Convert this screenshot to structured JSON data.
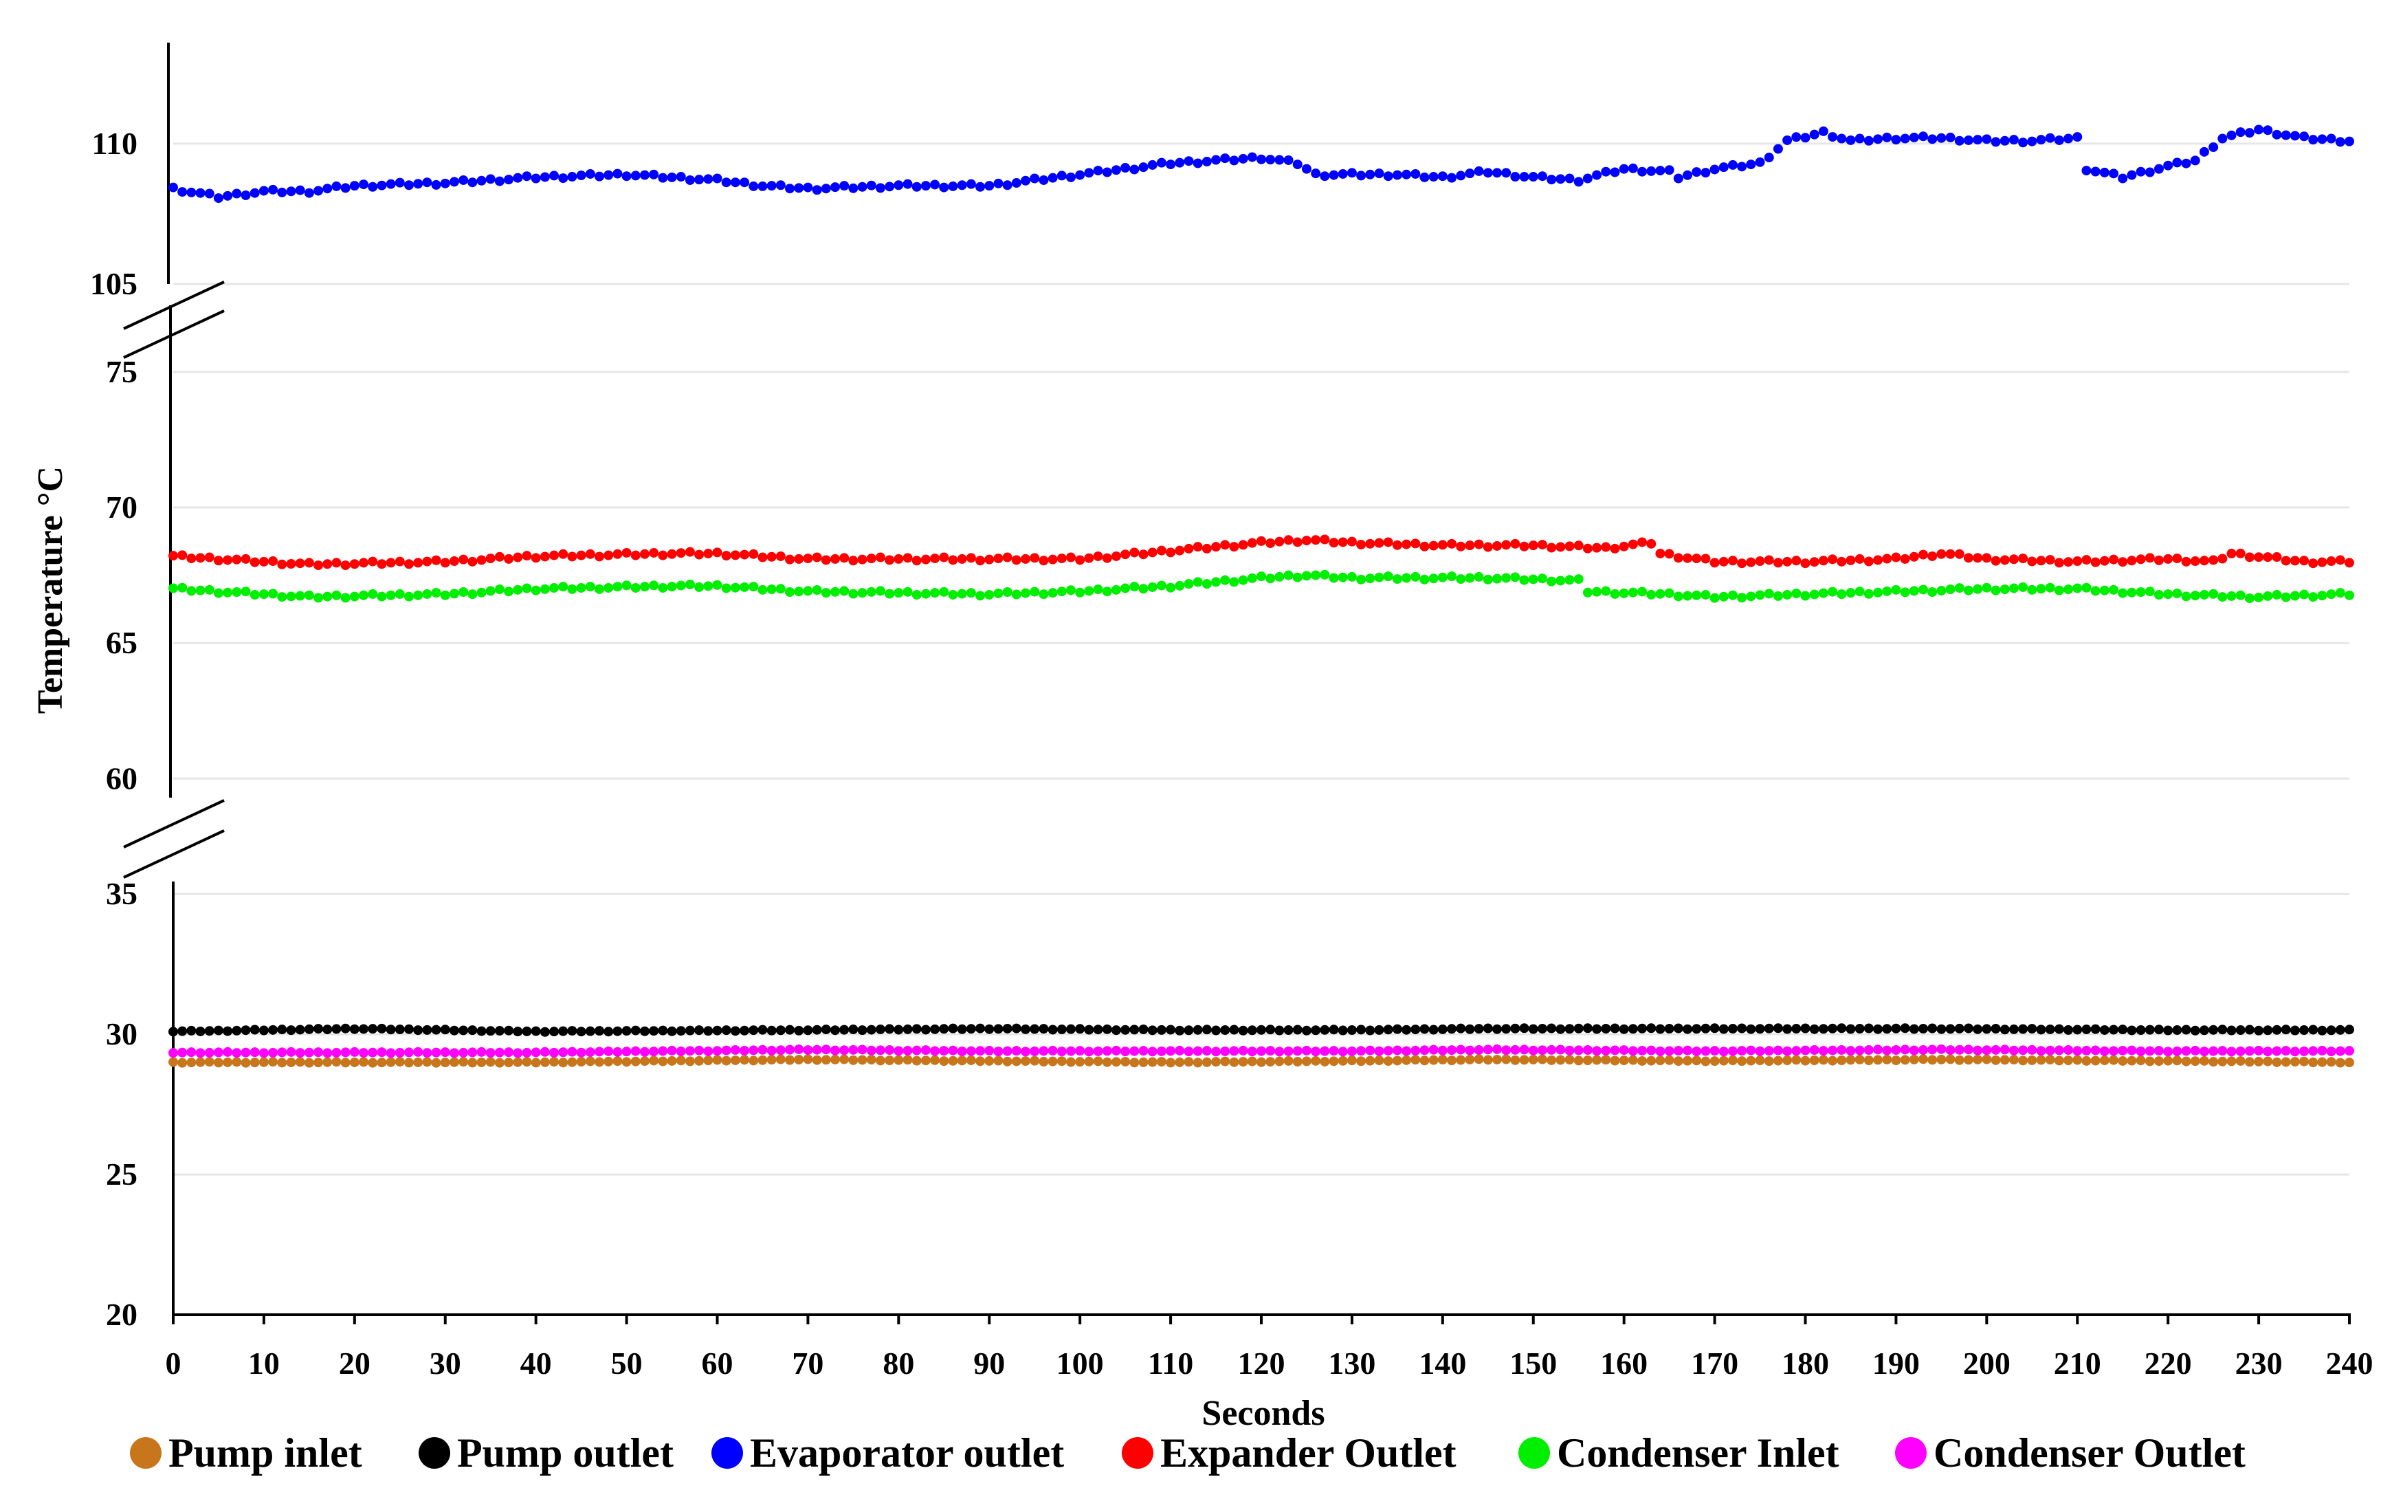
{
  "chart_data": {
    "type": "scatter",
    "xlabel": "Seconds",
    "ylabel": "Temperature  °C",
    "xlim": [
      0,
      240
    ],
    "xticks": [
      "0",
      "10",
      "20",
      "30",
      "40",
      "50",
      "60",
      "70",
      "80",
      "90",
      "100",
      "110",
      "120",
      "130",
      "140",
      "150",
      "160",
      "170",
      "180",
      "190",
      "200",
      "210",
      "220",
      "230",
      "240"
    ],
    "y_segments": [
      {
        "range": [
          105,
          113.5
        ],
        "ticks": [
          "105",
          "110"
        ]
      },
      {
        "range": [
          59.5,
          75.3
        ],
        "ticks": [
          "60",
          "65",
          "70",
          "75"
        ]
      },
      {
        "range": [
          20,
          35.3
        ],
        "ticks": [
          "20",
          "25",
          "30",
          "35"
        ]
      }
    ],
    "y_axis_breaks": [
      "between 75 and 105",
      "between 35 and 60"
    ],
    "grid": "horizontal",
    "legend_position": "bottom",
    "series": [
      {
        "name": "Pump inlet",
        "color": "#c8761c",
        "keyframes": [
          [
            0,
            29.0
          ],
          [
            20,
            29.0
          ],
          [
            40,
            29.0
          ],
          [
            70,
            29.1
          ],
          [
            90,
            29.05
          ],
          [
            110,
            29.0
          ],
          [
            130,
            29.05
          ],
          [
            145,
            29.1
          ],
          [
            170,
            29.05
          ],
          [
            195,
            29.1
          ],
          [
            220,
            29.05
          ],
          [
            240,
            29.0
          ]
        ]
      },
      {
        "name": "Pump outlet",
        "color": "#000000",
        "keyframes": [
          [
            0,
            30.1
          ],
          [
            20,
            30.2
          ],
          [
            40,
            30.1
          ],
          [
            70,
            30.15
          ],
          [
            90,
            30.2
          ],
          [
            110,
            30.15
          ],
          [
            130,
            30.15
          ],
          [
            145,
            30.2
          ],
          [
            170,
            30.2
          ],
          [
            195,
            30.2
          ],
          [
            220,
            30.15
          ],
          [
            240,
            30.15
          ]
        ]
      },
      {
        "name": "Evaporator outlet",
        "color": "#0000ff",
        "keyframes": [
          [
            0,
            108.4
          ],
          [
            5,
            108.1
          ],
          [
            10,
            108.3
          ],
          [
            15,
            108.3
          ],
          [
            20,
            108.5
          ],
          [
            30,
            108.6
          ],
          [
            40,
            108.8
          ],
          [
            50,
            108.9
          ],
          [
            60,
            108.7
          ],
          [
            65,
            108.5
          ],
          [
            70,
            108.4
          ],
          [
            80,
            108.5
          ],
          [
            90,
            108.5
          ],
          [
            100,
            108.9
          ],
          [
            110,
            109.3
          ],
          [
            120,
            109.5
          ],
          [
            124,
            109.3
          ],
          [
            126,
            108.9
          ],
          [
            135,
            108.9
          ],
          [
            140,
            108.8
          ],
          [
            145,
            109.0
          ],
          [
            150,
            108.8
          ],
          [
            155,
            108.7
          ],
          [
            160,
            109.1
          ],
          [
            165,
            109.0
          ],
          [
            166,
            108.8
          ],
          [
            170,
            109.1
          ],
          [
            175,
            109.3
          ],
          [
            178,
            110.1
          ],
          [
            182,
            110.4
          ],
          [
            185,
            110.1
          ],
          [
            190,
            110.2
          ],
          [
            195,
            110.2
          ],
          [
            200,
            110.1
          ],
          [
            205,
            110.1
          ],
          [
            210,
            110.2
          ],
          [
            211,
            109.1
          ],
          [
            215,
            108.8
          ],
          [
            220,
            109.2
          ],
          [
            223,
            109.4
          ],
          [
            226,
            110.2
          ],
          [
            230,
            110.5
          ],
          [
            235,
            110.2
          ],
          [
            240,
            110.1
          ]
        ]
      },
      {
        "name": "Expander Outlet",
        "color": "#ff0000",
        "keyframes": [
          [
            0,
            68.2
          ],
          [
            15,
            67.9
          ],
          [
            30,
            68.0
          ],
          [
            40,
            68.2
          ],
          [
            55,
            68.3
          ],
          [
            60,
            68.3
          ],
          [
            70,
            68.1
          ],
          [
            90,
            68.1
          ],
          [
            100,
            68.1
          ],
          [
            110,
            68.4
          ],
          [
            120,
            68.7
          ],
          [
            125,
            68.8
          ],
          [
            130,
            68.7
          ],
          [
            140,
            68.6
          ],
          [
            150,
            68.6
          ],
          [
            158,
            68.5
          ],
          [
            163,
            68.7
          ],
          [
            164,
            68.3
          ],
          [
            170,
            68.0
          ],
          [
            180,
            68.0
          ],
          [
            190,
            68.1
          ],
          [
            195,
            68.3
          ],
          [
            200,
            68.1
          ],
          [
            210,
            68.0
          ],
          [
            220,
            68.1
          ],
          [
            225,
            68.0
          ],
          [
            227,
            68.3
          ],
          [
            235,
            68.0
          ],
          [
            240,
            68.0
          ]
        ]
      },
      {
        "name": "Condenser Inlet",
        "color": "#00ee00",
        "keyframes": [
          [
            0,
            67.0
          ],
          [
            15,
            66.7
          ],
          [
            30,
            66.8
          ],
          [
            40,
            67.0
          ],
          [
            55,
            67.1
          ],
          [
            60,
            67.1
          ],
          [
            70,
            66.9
          ],
          [
            90,
            66.8
          ],
          [
            100,
            66.9
          ],
          [
            110,
            67.1
          ],
          [
            120,
            67.4
          ],
          [
            125,
            67.5
          ],
          [
            130,
            67.4
          ],
          [
            145,
            67.4
          ],
          [
            155,
            67.3
          ],
          [
            156,
            66.9
          ],
          [
            165,
            66.8
          ],
          [
            170,
            66.7
          ],
          [
            180,
            66.8
          ],
          [
            190,
            66.9
          ],
          [
            200,
            67.0
          ],
          [
            210,
            67.0
          ],
          [
            220,
            66.8
          ],
          [
            230,
            66.7
          ],
          [
            240,
            66.8
          ]
        ]
      },
      {
        "name": "Condenser Outlet",
        "color": "#ff00ff",
        "keyframes": [
          [
            0,
            29.35
          ],
          [
            20,
            29.35
          ],
          [
            40,
            29.35
          ],
          [
            70,
            29.45
          ],
          [
            90,
            29.4
          ],
          [
            110,
            29.4
          ],
          [
            130,
            29.4
          ],
          [
            145,
            29.45
          ],
          [
            170,
            29.4
          ],
          [
            195,
            29.45
          ],
          [
            220,
            29.4
          ],
          [
            240,
            29.4
          ]
        ]
      }
    ]
  }
}
